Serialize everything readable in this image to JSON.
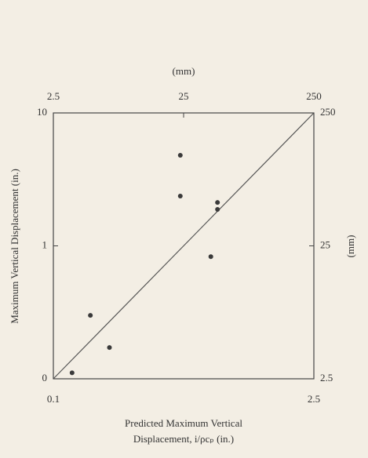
{
  "chart_data": {
    "type": "scatter",
    "xlabel": [
      "Predicted Maximum Vertical",
      "Displacement, i/ρcₚ (in.)"
    ],
    "ylabel": "Maximum Vertical Displacement (in.)",
    "x2label": "(mm)",
    "y2label": "(mm)",
    "xscale": "log",
    "yscale": "log",
    "xlim": [
      0.1,
      2.5
    ],
    "xticks": [
      0.1,
      2.5
    ],
    "ylim": [
      0.1,
      10
    ],
    "yticks": [
      {
        "value": 0.1,
        "label": "0"
      },
      1,
      10
    ],
    "x2lim": [
      2.5,
      250
    ],
    "x2ticks": [
      2.5,
      25,
      250
    ],
    "y2lim": [
      2.5,
      250
    ],
    "y2ticks": [
      2.5,
      25,
      250
    ],
    "color": "#3a3a3a",
    "x": [
      0.126,
      0.158,
      0.2,
      0.48,
      0.48,
      0.7,
      0.76,
      0.76
    ],
    "values": [
      0.111,
      0.3,
      0.172,
      4.8,
      2.37,
      0.83,
      2.12,
      1.88
    ]
  }
}
